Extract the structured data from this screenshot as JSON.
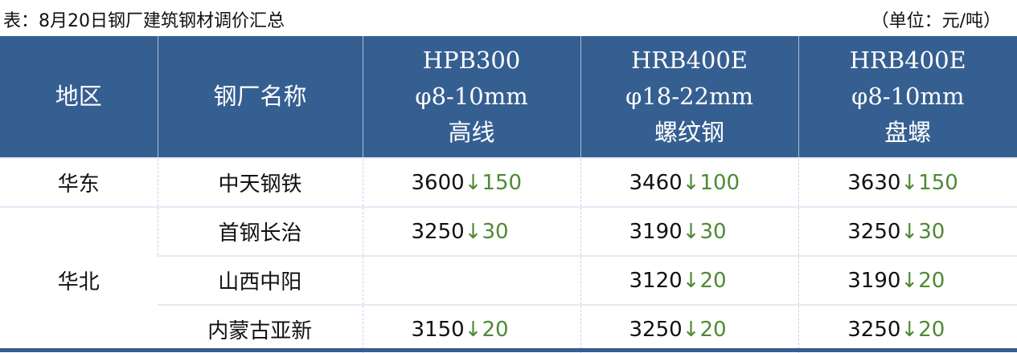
{
  "title": "表：8月20日钢厂建筑钢材调价汇总",
  "unit": "（单位：元/吨）",
  "colors": {
    "header_bg": "#365f91",
    "decrease": "#4e8a35"
  },
  "headers": [
    {
      "lines": [
        "地区"
      ]
    },
    {
      "lines": [
        "钢厂名称"
      ]
    },
    {
      "lines": [
        "HPB300",
        "φ8-10mm",
        "高线"
      ]
    },
    {
      "lines": [
        "HRB400E",
        "φ18-22mm",
        "螺纹钢"
      ]
    },
    {
      "lines": [
        "HRB400E",
        "φ8-10mm",
        "盘螺"
      ]
    }
  ],
  "rows": [
    {
      "region": "华东",
      "mill": "中天钢铁",
      "cells": [
        {
          "price": "3600",
          "change": "↓150"
        },
        {
          "price": "3460",
          "change": "↓100"
        },
        {
          "price": "3630",
          "change": "↓150"
        }
      ]
    },
    {
      "region": "华北",
      "mill": "首钢长治",
      "cells": [
        {
          "price": "3250",
          "change": "↓30"
        },
        {
          "price": "3190",
          "change": "↓30"
        },
        {
          "price": "3250",
          "change": "↓30"
        }
      ]
    },
    {
      "mill": "山西中阳",
      "cells": [
        {
          "price": "",
          "change": ""
        },
        {
          "price": "3120",
          "change": "↓20"
        },
        {
          "price": "3190",
          "change": "↓20"
        }
      ]
    },
    {
      "mill": "内蒙古亚新",
      "cells": [
        {
          "price": "3150",
          "change": "↓20"
        },
        {
          "price": "3250",
          "change": "↓20"
        },
        {
          "price": "3250",
          "change": "↓20"
        }
      ]
    }
  ]
}
